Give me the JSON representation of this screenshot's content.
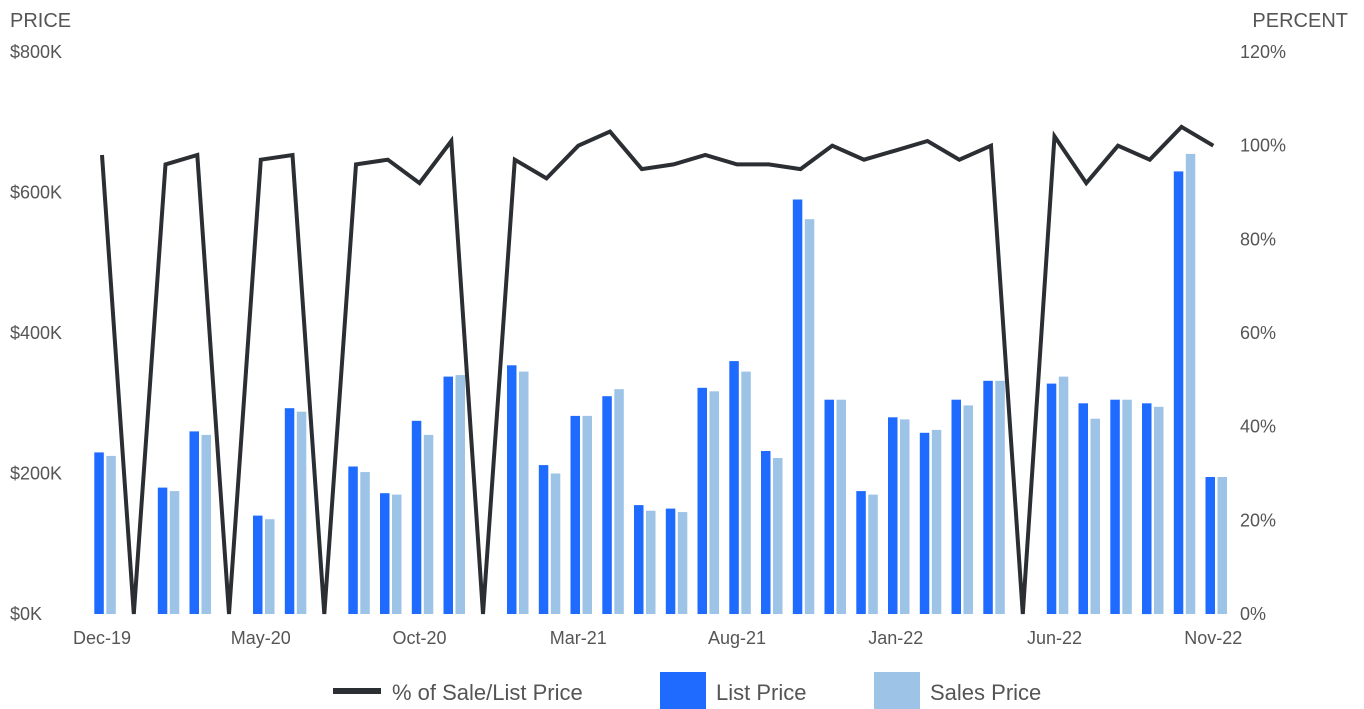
{
  "chart_data": {
    "type": "bar",
    "left_axis_title": "PRICE",
    "right_axis_title": "PERCENT",
    "left_ticks": [
      "$0K",
      "$200K",
      "$400K",
      "$600K",
      "$800K"
    ],
    "left_ylim": [
      0,
      800000
    ],
    "right_ticks": [
      "0%",
      "20%",
      "40%",
      "60%",
      "80%",
      "100%",
      "120%"
    ],
    "right_ylim": [
      0,
      120
    ],
    "x_tick_labels": [
      "Dec-19",
      "May-20",
      "Oct-20",
      "Mar-21",
      "Aug-21",
      "Jan-22",
      "Jun-22",
      "Nov-22"
    ],
    "categories": [
      "Dec-19",
      "Jan-20",
      "Feb-20",
      "Mar-20",
      "Apr-20",
      "May-20",
      "Jun-20",
      "Jul-20",
      "Aug-20",
      "Sep-20",
      "Oct-20",
      "Nov-20",
      "Dec-20",
      "Jan-21",
      "Feb-21",
      "Mar-21",
      "Apr-21",
      "May-21",
      "Jun-21",
      "Jul-21",
      "Aug-21",
      "Sep-21",
      "Oct-21",
      "Nov-21",
      "Dec-21",
      "Jan-22",
      "Feb-22",
      "Mar-22",
      "Apr-22",
      "May-22",
      "Jun-22",
      "Jul-22",
      "Aug-22",
      "Sep-22",
      "Oct-22",
      "Nov-22"
    ],
    "series": [
      {
        "name": "List Price",
        "kind": "bar",
        "axis": "left",
        "color": "#1f6bff",
        "values": [
          230000,
          0,
          180000,
          260000,
          0,
          140000,
          293000,
          0,
          210000,
          172000,
          275000,
          338000,
          0,
          354000,
          212000,
          282000,
          310000,
          155000,
          150000,
          322000,
          360000,
          232000,
          590000,
          305000,
          175000,
          280000,
          258000,
          305000,
          332000,
          0,
          328000,
          300000,
          305000,
          300000,
          630000,
          195000
        ]
      },
      {
        "name": "Sales Price",
        "kind": "bar",
        "axis": "left",
        "color": "#9dc3e6",
        "values": [
          225000,
          0,
          175000,
          255000,
          0,
          135000,
          288000,
          0,
          202000,
          170000,
          255000,
          340000,
          0,
          345000,
          200000,
          282000,
          320000,
          147000,
          145000,
          317000,
          345000,
          222000,
          562000,
          305000,
          170000,
          277000,
          262000,
          297000,
          332000,
          0,
          338000,
          278000,
          305000,
          295000,
          655000,
          195000
        ]
      },
      {
        "name": "% of Sale/List Price",
        "kind": "line",
        "axis": "right",
        "color": "#2b2e33",
        "values": [
          98,
          0,
          96,
          98,
          0,
          97,
          98,
          0,
          96,
          97,
          92,
          101,
          0,
          97,
          93,
          100,
          103,
          95,
          96,
          98,
          96,
          96,
          95,
          100,
          97,
          99,
          101,
          97,
          100,
          0,
          102,
          92,
          100,
          97,
          104,
          100
        ]
      }
    ],
    "legend": [
      {
        "label": "% of Sale/List Price",
        "swatch": "line",
        "color": "#2b2e33"
      },
      {
        "label": "List Price",
        "swatch": "box",
        "color": "#1f6bff"
      },
      {
        "label": "Sales Price",
        "swatch": "box",
        "color": "#9dc3e6"
      }
    ],
    "legend_position": "bottom",
    "grid": false
  }
}
